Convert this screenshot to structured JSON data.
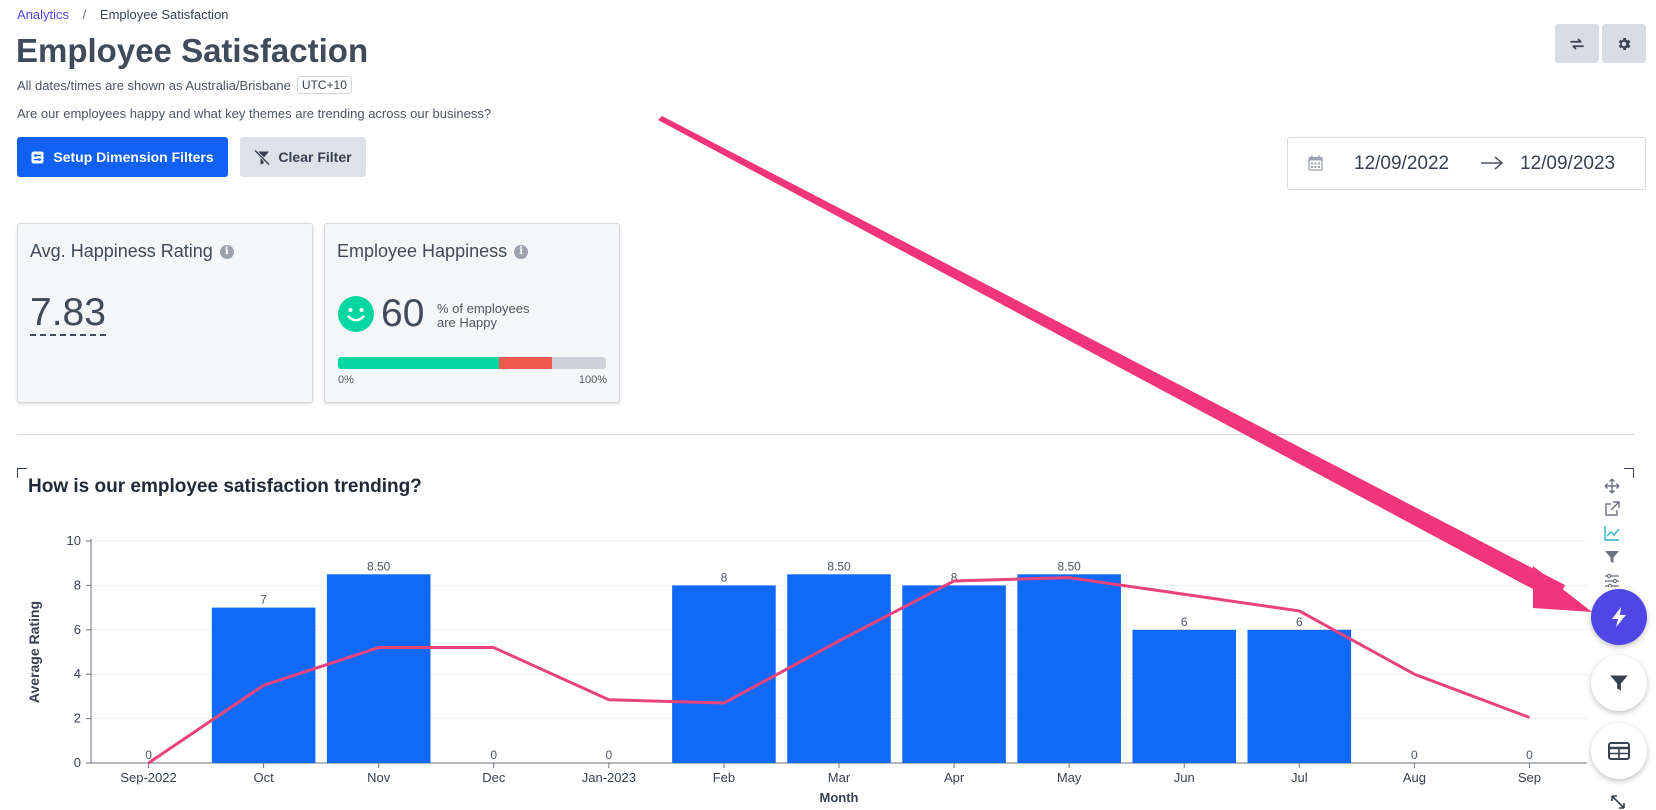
{
  "breadcrumb": {
    "parent": "Analytics",
    "separator": "/",
    "current": "Employee Satisfaction"
  },
  "page": {
    "title": "Employee Satisfaction",
    "timezone_text": "All dates/times are shown as Australia/Brisbane",
    "timezone_badge": "UTC+10",
    "description": "Are our employees happy and what key themes are trending across our business?"
  },
  "toolbar": {
    "refresh_icon": "refresh-icon",
    "settings_icon": "gear-icon"
  },
  "filters": {
    "setup_label": "Setup Dimension Filters",
    "clear_label": "Clear Filter"
  },
  "date_range": {
    "start": "12/09/2022",
    "end": "12/09/2023"
  },
  "cards": {
    "avg": {
      "title": "Avg. Happiness Rating",
      "value": "7.83"
    },
    "happiness": {
      "title": "Employee Happiness",
      "value": "60",
      "unit_line1": "% of employees",
      "unit_line2": "are Happy",
      "min_label": "0%",
      "max_label": "100%",
      "segments": [
        {
          "share": 0.6,
          "color": "#06d6a0"
        },
        {
          "share": 0.2,
          "color": "#ef5a4c"
        },
        {
          "share": 0.2,
          "color": "#cdd2d8"
        }
      ]
    }
  },
  "chart": {
    "title": "How is our employee satisfaction trending?",
    "tools": [
      "move-icon",
      "external-link-icon",
      "line-chart-icon",
      "filter-icon",
      "sliders-icon"
    ],
    "fabs": [
      "lightning-icon",
      "filter-icon",
      "table-icon"
    ]
  },
  "annotation": {
    "arrow_color": "#f0357a"
  },
  "chart_data": {
    "type": "bar",
    "categories": [
      "Sep-2022",
      "Oct",
      "Nov",
      "Dec",
      "Jan-2023",
      "Feb",
      "Mar",
      "Apr",
      "May",
      "Jun",
      "Jul",
      "Aug",
      "Sep"
    ],
    "series": [
      {
        "type": "bar",
        "values": [
          0,
          7,
          8.5,
          0,
          0,
          8,
          8.5,
          8,
          8.5,
          6,
          6,
          0,
          0
        ],
        "color": "#1169f7",
        "labels": [
          "0",
          "7",
          "8.50",
          "0",
          "0",
          "8",
          "8.50",
          "8",
          "8.50",
          "6",
          "6",
          "0",
          "0"
        ]
      },
      {
        "type": "line",
        "values": [
          0,
          3.5,
          5.2,
          5.2,
          2.85,
          2.7,
          5.5,
          8.2,
          8.35,
          7.6,
          6.85,
          4.0,
          2.05
        ],
        "color": "#e8437a"
      }
    ],
    "xlabel": "Month",
    "ylabel": "Average Rating",
    "ylim": [
      0,
      10
    ],
    "yticks": [
      "0",
      "2",
      "4",
      "6",
      "8",
      "10"
    ],
    "grid": true
  }
}
